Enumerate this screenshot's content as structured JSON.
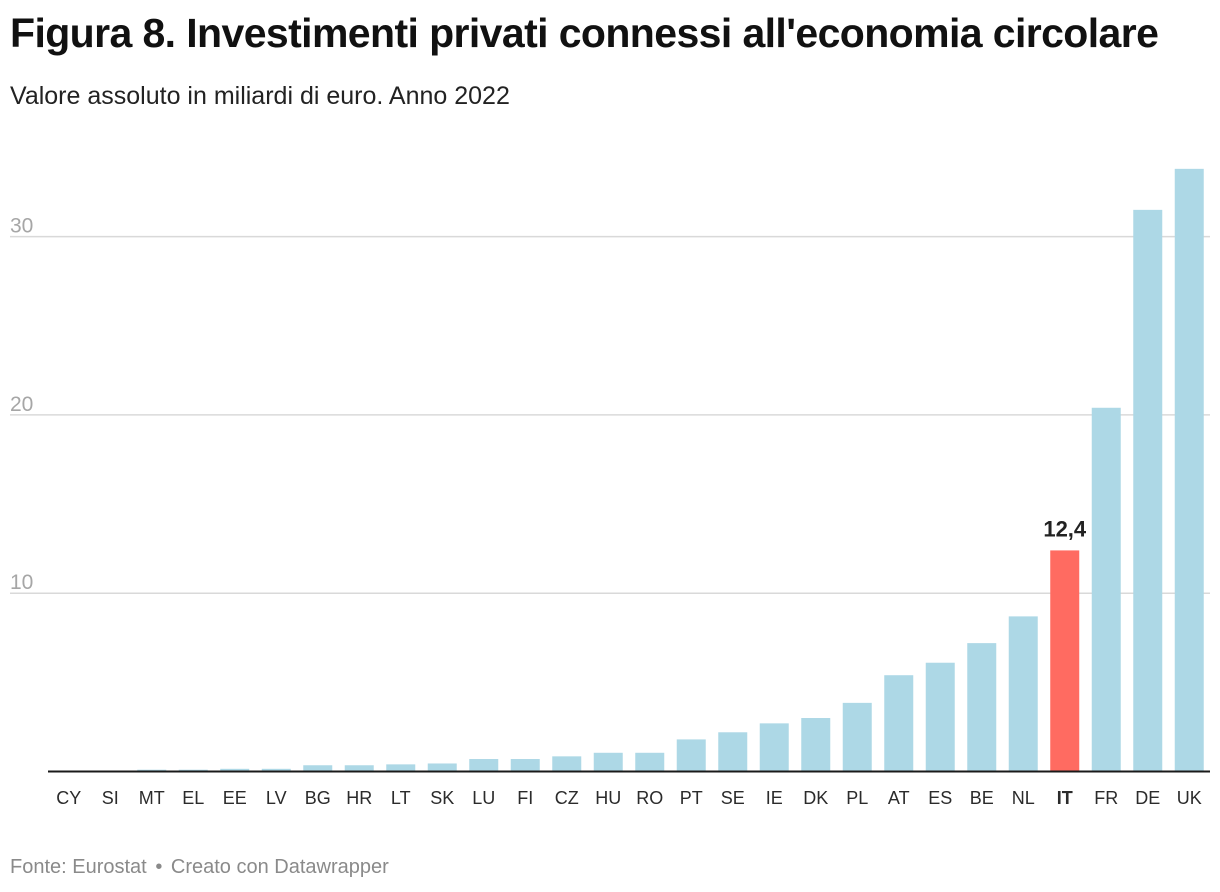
{
  "header": {
    "title": "Figura 8. Investimenti privati connessi all'economia circolare",
    "subtitle": "Valore assoluto in miliardi di euro. Anno 2022"
  },
  "footer": {
    "source": "Fonte: Eurostat",
    "separator": "•",
    "credit": "Creato con Datawrapper"
  },
  "chart_data": {
    "type": "bar",
    "title": "Figura 8. Investimenti privati connessi all'economia circolare",
    "subtitle": "Valore assoluto in miliardi di euro. Anno 2022",
    "xlabel": "",
    "ylabel": "",
    "ylim": [
      0,
      34
    ],
    "yticks": [
      10,
      20,
      30
    ],
    "grid": true,
    "categories": [
      "CY",
      "SI",
      "MT",
      "EL",
      "EE",
      "LV",
      "BG",
      "HR",
      "LT",
      "SK",
      "LU",
      "FI",
      "CZ",
      "HU",
      "RO",
      "PT",
      "SE",
      "IE",
      "DK",
      "PL",
      "AT",
      "ES",
      "BE",
      "NL",
      "IT",
      "FR",
      "DE",
      "UK"
    ],
    "values": [
      0.0,
      0.05,
      0.1,
      0.1,
      0.15,
      0.15,
      0.35,
      0.35,
      0.4,
      0.45,
      0.7,
      0.7,
      0.85,
      1.05,
      1.05,
      1.8,
      2.2,
      2.7,
      3.0,
      3.85,
      5.4,
      6.1,
      7.2,
      8.7,
      12.4,
      20.4,
      31.5,
      33.8
    ],
    "highlight": {
      "category": "IT",
      "label": "12,4"
    },
    "colors": {
      "bar": "#add8e6",
      "highlight": "#ff6b61",
      "grid": "#d9d9d9",
      "axis": "#1a1a1a",
      "tick_label": "#a6a6a6",
      "category_label": "#2b2b2b",
      "value_label": "#222222"
    }
  }
}
